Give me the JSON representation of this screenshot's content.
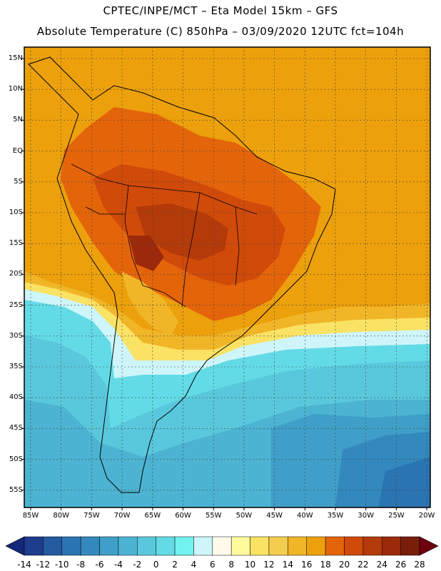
{
  "title": {
    "line1": "CPTEC/INPE/MCT –  Eta Model 15km – GFS",
    "line2": "Absolute Temperature (C) 850hPa – 03/09/2020 12UTC fct=104h"
  },
  "map": {
    "lat_labels": [
      "15N",
      "10N",
      "5N",
      "EQ",
      "5S",
      "10S",
      "15S",
      "20S",
      "25S",
      "30S",
      "35S",
      "40S",
      "45S",
      "50S",
      "55S"
    ],
    "lon_labels": [
      "85W",
      "80W",
      "75W",
      "70W",
      "65W",
      "60W",
      "55W",
      "50W",
      "45W",
      "40W",
      "35W",
      "30W",
      "25W",
      "20W"
    ]
  },
  "colorbar": {
    "labels": [
      "-14",
      "-12",
      "-10",
      "-8",
      "-6",
      "-4",
      "-2",
      "0",
      "2",
      "4",
      "6",
      "8",
      "10",
      "12",
      "14",
      "16",
      "18",
      "20",
      "22",
      "24",
      "26",
      "28"
    ],
    "colors": [
      "#1e3c8c",
      "#235aa0",
      "#2a74b2",
      "#3389be",
      "#3f9fc8",
      "#4cb3d2",
      "#5ac8dc",
      "#63dbe6",
      "#72f2f0",
      "#cef5fa",
      "#fffaea",
      "#fffa9c",
      "#fae264",
      "#f4cd50",
      "#f0b628",
      "#eca00c",
      "#e4640a",
      "#d04a0a",
      "#b43a0a",
      "#9c2a0a",
      "#781e0a"
    ],
    "under_color": "#12287a",
    "over_color": "#6e0010"
  }
}
